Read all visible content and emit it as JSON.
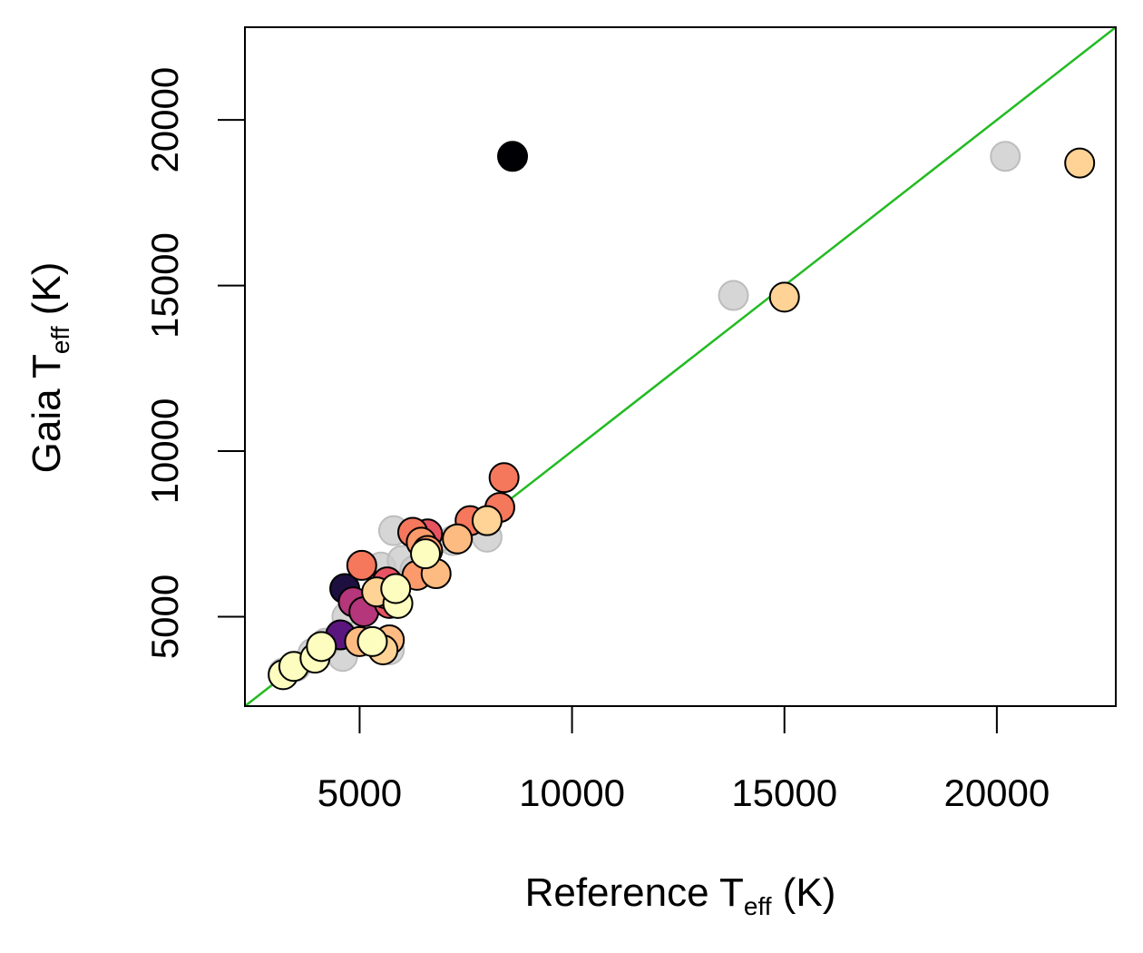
{
  "chart_data": {
    "type": "scatter",
    "xlabel_main": "Reference T",
    "xlabel_sub": "eff",
    "xlabel_unit": " (K)",
    "ylabel_main": "Gaia T",
    "ylabel_sub": "eff",
    "ylabel_unit": " (K)",
    "xlim": [
      2300,
      22800
    ],
    "ylim": [
      2300,
      22800
    ],
    "xticks": [
      5000,
      10000,
      15000,
      20000
    ],
    "yticks": [
      5000,
      10000,
      15000,
      20000
    ],
    "grid": false,
    "identity_line": {
      "color": "#22bb22"
    },
    "colors": {
      "grey": "#cccccc",
      "dark": "#000004",
      "navy": "#1d1040",
      "purple": "#5a167e",
      "magenta": "#b5367a",
      "crimson": "#d8436c",
      "red": "#e85362",
      "coral": "#f5775c",
      "salmon": "#fc9a6b",
      "peach": "#febb81",
      "light_orange": "#fed395",
      "cream": "#fcf8ba",
      "pale_yellow": "#fcfdbf"
    },
    "series": [
      {
        "group": "background",
        "points": [
          {
            "x": 3200,
            "y": 3300,
            "c": "grey"
          },
          {
            "x": 3500,
            "y": 3500,
            "c": "grey"
          },
          {
            "x": 3900,
            "y": 3900,
            "c": "grey"
          },
          {
            "x": 4200,
            "y": 4200,
            "c": "grey"
          },
          {
            "x": 4600,
            "y": 3800,
            "c": "grey"
          },
          {
            "x": 4700,
            "y": 5000,
            "c": "grey"
          },
          {
            "x": 5200,
            "y": 5400,
            "c": "grey"
          },
          {
            "x": 5500,
            "y": 6500,
            "c": "grey"
          },
          {
            "x": 5700,
            "y": 4000,
            "c": "grey"
          },
          {
            "x": 5800,
            "y": 7600,
            "c": "grey"
          },
          {
            "x": 6000,
            "y": 6700,
            "c": "grey"
          },
          {
            "x": 6300,
            "y": 6400,
            "c": "grey"
          },
          {
            "x": 7200,
            "y": 7300,
            "c": "grey"
          },
          {
            "x": 8000,
            "y": 7400,
            "c": "grey"
          },
          {
            "x": 13800,
            "y": 14700,
            "c": "grey"
          },
          {
            "x": 20200,
            "y": 18900,
            "c": "grey"
          }
        ]
      },
      {
        "group": "foreground",
        "points": [
          {
            "x": 8600,
            "y": 18900,
            "c": "dark"
          },
          {
            "x": 4650,
            "y": 5850,
            "c": "navy"
          },
          {
            "x": 4550,
            "y": 4450,
            "c": "purple"
          },
          {
            "x": 4850,
            "y": 5450,
            "c": "magenta"
          },
          {
            "x": 5100,
            "y": 5150,
            "c": "magenta"
          },
          {
            "x": 5500,
            "y": 5700,
            "c": "crimson"
          },
          {
            "x": 5650,
            "y": 6050,
            "c": "red"
          },
          {
            "x": 5700,
            "y": 5400,
            "c": "red"
          },
          {
            "x": 6600,
            "y": 7500,
            "c": "red"
          },
          {
            "x": 5050,
            "y": 6550,
            "c": "coral"
          },
          {
            "x": 6250,
            "y": 7550,
            "c": "coral"
          },
          {
            "x": 7600,
            "y": 7900,
            "c": "coral"
          },
          {
            "x": 8300,
            "y": 8300,
            "c": "coral"
          },
          {
            "x": 8400,
            "y": 9200,
            "c": "coral"
          },
          {
            "x": 5600,
            "y": 5700,
            "c": "salmon"
          },
          {
            "x": 6350,
            "y": 6250,
            "c": "salmon"
          },
          {
            "x": 6450,
            "y": 7250,
            "c": "salmon"
          },
          {
            "x": 6600,
            "y": 7000,
            "c": "salmon"
          },
          {
            "x": 5000,
            "y": 4250,
            "c": "peach"
          },
          {
            "x": 5700,
            "y": 4300,
            "c": "peach"
          },
          {
            "x": 6800,
            "y": 6300,
            "c": "peach"
          },
          {
            "x": 7300,
            "y": 7350,
            "c": "peach"
          },
          {
            "x": 8000,
            "y": 7900,
            "c": "light_orange"
          },
          {
            "x": 15000,
            "y": 14650,
            "c": "light_orange"
          },
          {
            "x": 21950,
            "y": 18700,
            "c": "light_orange"
          },
          {
            "x": 5400,
            "y": 5750,
            "c": "light_orange"
          },
          {
            "x": 5550,
            "y": 4000,
            "c": "light_orange"
          },
          {
            "x": 3200,
            "y": 3250,
            "c": "pale_yellow"
          },
          {
            "x": 3450,
            "y": 3500,
            "c": "pale_yellow"
          },
          {
            "x": 3950,
            "y": 3750,
            "c": "pale_yellow"
          },
          {
            "x": 4100,
            "y": 4100,
            "c": "pale_yellow"
          },
          {
            "x": 5300,
            "y": 4250,
            "c": "pale_yellow"
          },
          {
            "x": 5900,
            "y": 5400,
            "c": "pale_yellow"
          },
          {
            "x": 5850,
            "y": 5850,
            "c": "pale_yellow"
          },
          {
            "x": 6550,
            "y": 6900,
            "c": "pale_yellow"
          }
        ]
      }
    ]
  }
}
